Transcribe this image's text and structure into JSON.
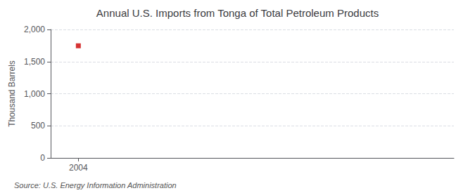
{
  "chart_data": {
    "type": "scatter",
    "title": "Annual U.S. Imports from Tonga of Total Petroleum Products",
    "ylabel": "Thousand Barrels",
    "annotation": "Source: U.S. Energy Information Administration",
    "x": [
      2004
    ],
    "values": [
      1746
    ],
    "color": "#cc0000",
    "marker": "square",
    "xlim": [
      2003.3,
      2013.5
    ],
    "xticks": [
      2004
    ],
    "ylim": [
      0,
      2000
    ],
    "yticks": [
      0,
      500,
      {
        "value": 1000,
        "label": "1,000"
      },
      {
        "value": 1500,
        "label": "1,500"
      },
      {
        "value": 2000,
        "label": "2,000"
      }
    ],
    "grid": true
  }
}
